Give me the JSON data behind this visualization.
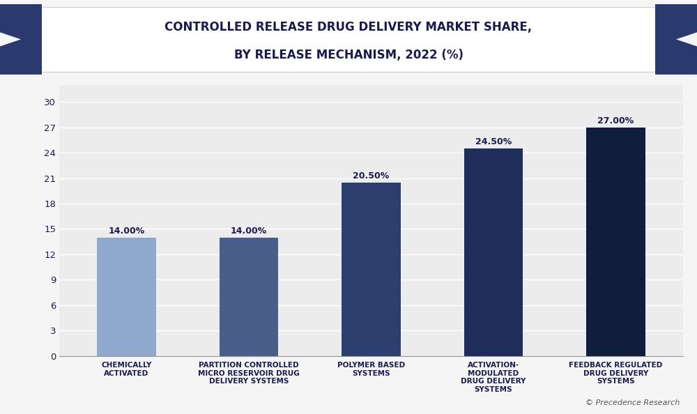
{
  "title_line1": "CONTROLLED RELEASE DRUG DELIVERY MARKET SHARE,",
  "title_line2": "BY RELEASE MECHANISM, 2022 (%)",
  "categories": [
    "CHEMICALLY\nACTIVATED",
    "PARTITION CONTROLLED\nMICRO RESERVOIR DRUG\nDELIVERY SYSTEMS",
    "POLYMER BASED\nSYSTEMS",
    "ACTIVATION-\nMODULATED\nDRUG DELIVERY\nSYSTEMS",
    "FEEDBACK REGULATED\nDRUG DELIVERY\nSYSTEMS"
  ],
  "values": [
    14.0,
    14.0,
    20.5,
    24.5,
    27.0
  ],
  "labels": [
    "14.00%",
    "14.00%",
    "20.50%",
    "24.50%",
    "27.00%"
  ],
  "bar_colors": [
    "#8fa8cc",
    "#4a5e8a",
    "#2d3f6e",
    "#1e2d5a",
    "#111d3c"
  ],
  "background_color": "#f5f5f5",
  "plot_bg_color": "#ececec",
  "title_color": "#1a1a4e",
  "grid_color": "#ffffff",
  "label_color": "#1a1a4e",
  "tick_label_color": "#1a1a4e",
  "header_bg": "#ffffff",
  "header_tri_color": "#2a3a6e",
  "watermark": "© Precedence Research",
  "yticks": [
    0,
    3,
    6,
    9,
    12,
    15,
    18,
    21,
    24,
    27,
    30
  ],
  "ylim": [
    0,
    32
  ],
  "figsize": [
    10.0,
    5.94
  ],
  "dpi": 100
}
